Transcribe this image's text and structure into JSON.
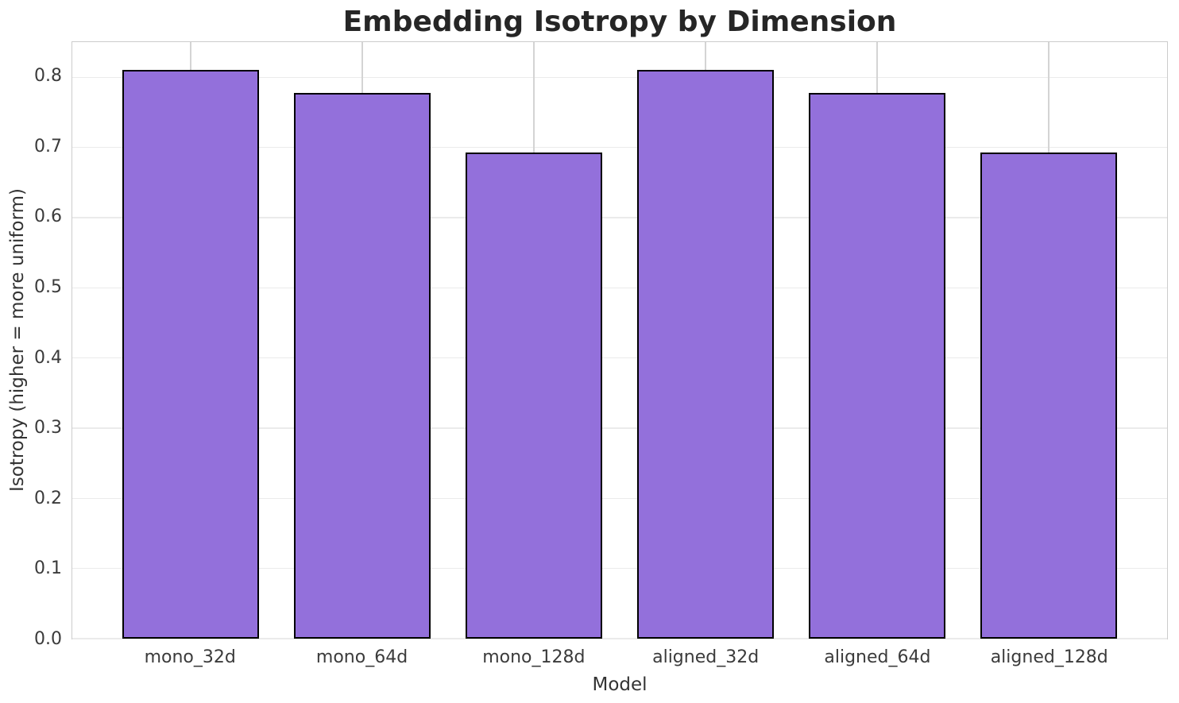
{
  "chart_data": {
    "type": "bar",
    "title": "Embedding Isotropy by Dimension",
    "xlabel": "Model",
    "ylabel": "Isotropy (higher = more uniform)",
    "categories": [
      "mono_32d",
      "mono_64d",
      "mono_128d",
      "aligned_32d",
      "aligned_64d",
      "aligned_128d"
    ],
    "values": [
      0.81,
      0.778,
      0.693,
      0.81,
      0.778,
      0.693
    ],
    "ylim": [
      0,
      0.85
    ],
    "yticks": [
      0.0,
      0.1,
      0.2,
      0.3,
      0.4,
      0.5,
      0.6,
      0.7,
      0.8
    ],
    "ytick_decimals": 1,
    "grid": "both",
    "legend": "none",
    "colors": {
      "bar_fill": "#9370DB",
      "bar_edge": "#000000",
      "grid_horizontal": "#ebebeb",
      "grid_vertical": "#d4d4d4",
      "spine": "#cccccc",
      "title_text": "#262626",
      "tick_text": "#3b3b3b",
      "label_text": "#333333",
      "background": "#ffffff"
    }
  }
}
